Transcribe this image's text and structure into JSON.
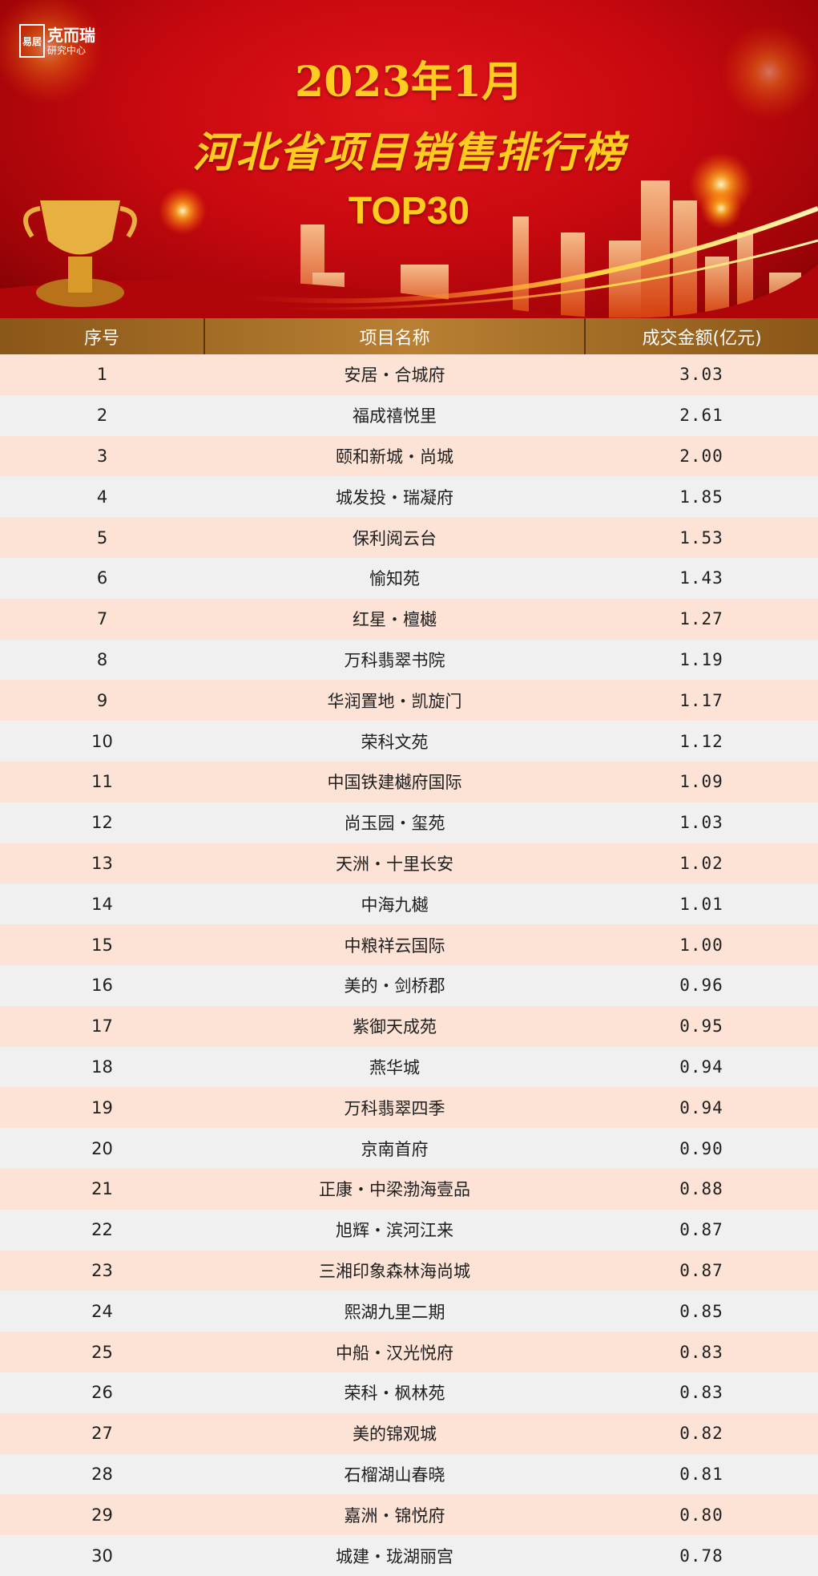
{
  "banner": {
    "logo_mark": "易居",
    "logo_brand": "克而瑞",
    "logo_sub": "研究中心",
    "title_line1": "2023年1月",
    "title_line2": "河北省项目销售排行榜",
    "title_line3": "TOP30"
  },
  "colors": {
    "header_gold": "#b98033",
    "row_peach": "#fde3d6",
    "row_gray": "#f0f0f0",
    "banner_red": "#c8090f",
    "title_yellow": "#ffcc1f"
  },
  "table": {
    "headers": [
      "序号",
      "项目名称",
      "成交金额(亿元)"
    ],
    "rows": [
      [
        "1",
        "安居・合城府",
        "3.03"
      ],
      [
        "2",
        "福成禧悦里",
        "2.61"
      ],
      [
        "3",
        "颐和新城・尚城",
        "2.00"
      ],
      [
        "4",
        "城发投・瑞凝府",
        "1.85"
      ],
      [
        "5",
        "保利阅云台",
        "1.53"
      ],
      [
        "6",
        "愉知苑",
        "1.43"
      ],
      [
        "7",
        "红星・檀樾",
        "1.27"
      ],
      [
        "8",
        "万科翡翠书院",
        "1.19"
      ],
      [
        "9",
        "华润置地・凯旋门",
        "1.17"
      ],
      [
        "10",
        "荣科文苑",
        "1.12"
      ],
      [
        "11",
        "中国铁建樾府国际",
        "1.09"
      ],
      [
        "12",
        "尚玉园・玺苑",
        "1.03"
      ],
      [
        "13",
        "天洲・十里长安",
        "1.02"
      ],
      [
        "14",
        "中海九樾",
        "1.01"
      ],
      [
        "15",
        "中粮祥云国际",
        "1.00"
      ],
      [
        "16",
        "美的・剑桥郡",
        "0.96"
      ],
      [
        "17",
        "紫御天成苑",
        "0.95"
      ],
      [
        "18",
        "燕华城",
        "0.94"
      ],
      [
        "19",
        "万科翡翠四季",
        "0.94"
      ],
      [
        "20",
        "京南首府",
        "0.90"
      ],
      [
        "21",
        "正康・中梁渤海壹品",
        "0.88"
      ],
      [
        "22",
        "旭辉・滨河江来",
        "0.87"
      ],
      [
        "23",
        "三湘印象森林海尚城",
        "0.87"
      ],
      [
        "24",
        "熙湖九里二期",
        "0.85"
      ],
      [
        "25",
        "中船・汉光悦府",
        "0.83"
      ],
      [
        "26",
        "荣科・枫林苑",
        "0.83"
      ],
      [
        "27",
        "美的锦观城",
        "0.82"
      ],
      [
        "28",
        "石榴湖山春晓",
        "0.81"
      ],
      [
        "29",
        "嘉洲・锦悦府",
        "0.80"
      ],
      [
        "30",
        "城建・珑湖丽宫",
        "0.78"
      ]
    ]
  }
}
